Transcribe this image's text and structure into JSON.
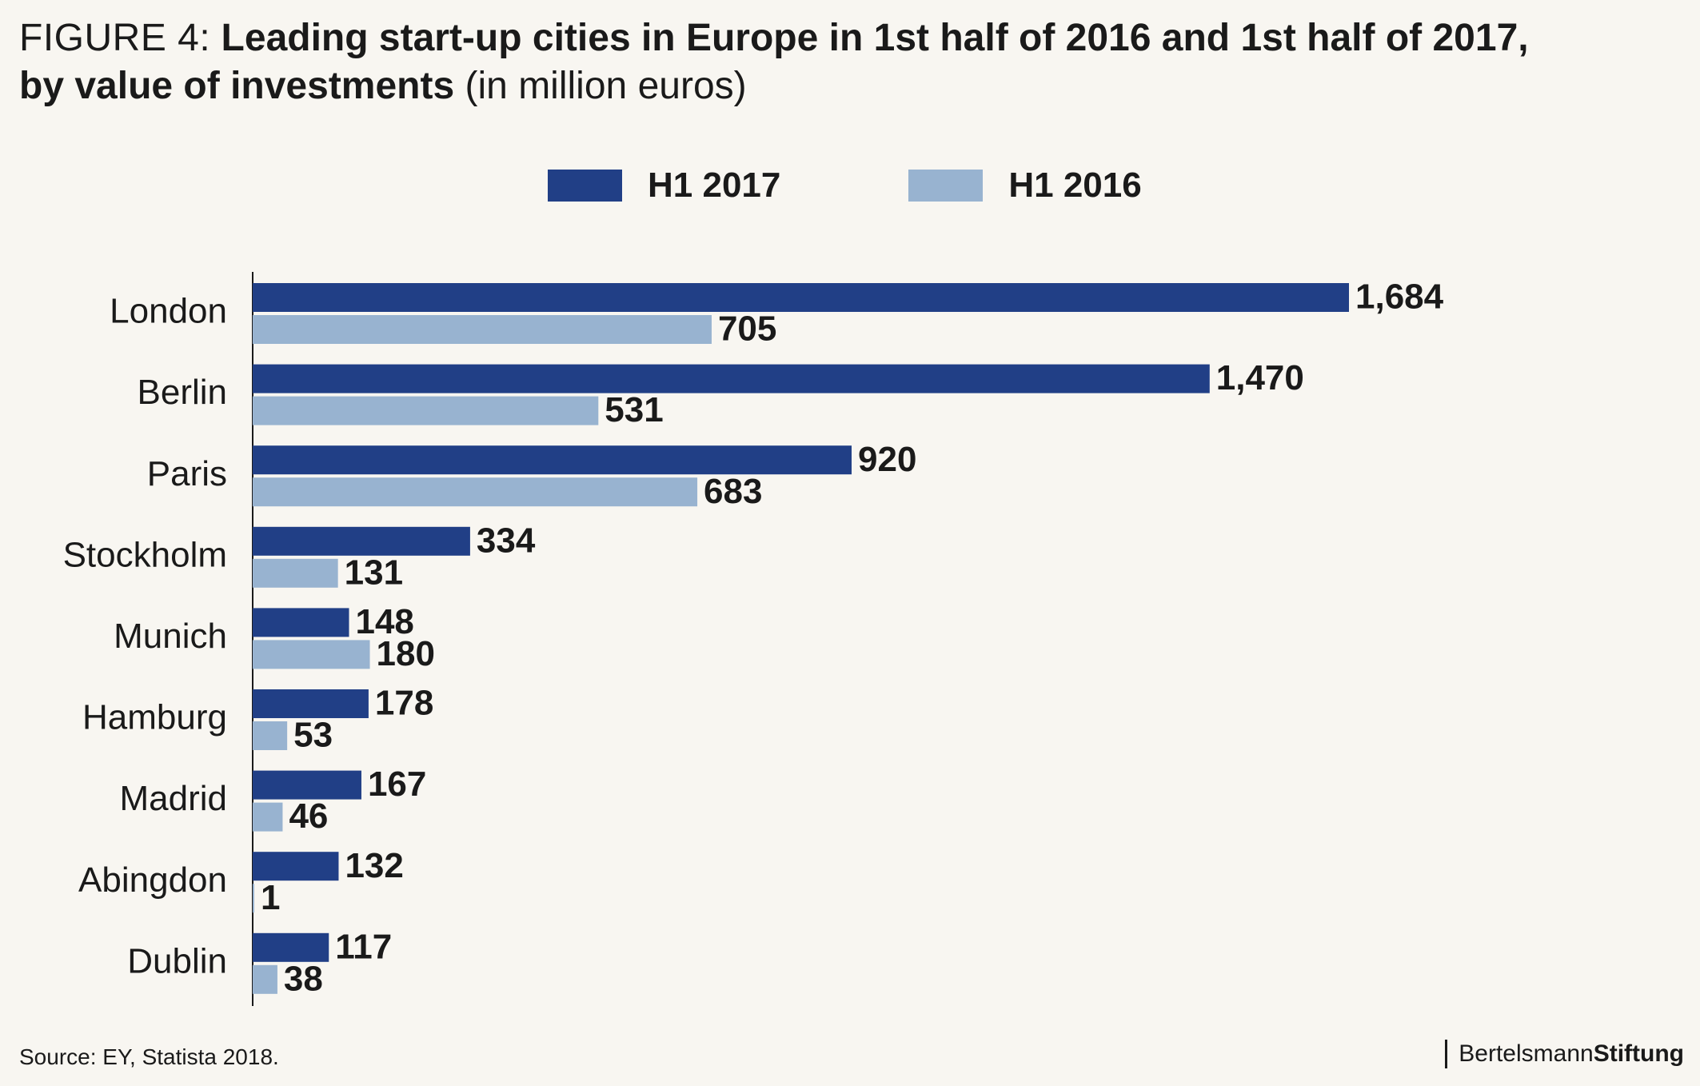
{
  "header": {
    "figure_label": "FIGURE 4:",
    "title_bold_1": "Leading start-up cities in Europe in 1st half of 2016 and 1st half of 2017,",
    "title_bold_2": "by value of investments",
    "title_unit": "(in million euros)"
  },
  "footer": {
    "source": "Source: EY, Statista 2018.",
    "brand_part1": "Bertelsmann",
    "brand_part2": "Stiftung"
  },
  "colors": {
    "h1_2017": "#213f86",
    "h1_2016": "#98b3d0",
    "axis": "#1a1a1a",
    "background": "#f8f6f1"
  },
  "chart_data": {
    "type": "bar",
    "orientation": "horizontal",
    "title": "Leading start-up cities in Europe in 1st half of 2016 and 1st half of 2017, by value of investments (in million euros)",
    "categories": [
      "London",
      "Berlin",
      "Paris",
      "Stockholm",
      "Munich",
      "Hamburg",
      "Madrid",
      "Abingdon",
      "Dublin"
    ],
    "series": [
      {
        "name": "H1 2017",
        "values": [
          1684,
          1470,
          920,
          334,
          148,
          178,
          167,
          132,
          117
        ],
        "labels": [
          "1,684",
          "1,470",
          "920",
          "334",
          "148",
          "178",
          "167",
          "132",
          "117"
        ]
      },
      {
        "name": "H1 2016",
        "values": [
          705,
          531,
          683,
          131,
          180,
          53,
          46,
          1,
          38
        ],
        "labels": [
          "705",
          "531",
          "683",
          "131",
          "180",
          "53",
          "46",
          "1",
          "38"
        ]
      }
    ],
    "xlim": [
      0,
      1684
    ],
    "grid": false,
    "legend": "top-center",
    "xlabel": "",
    "ylabel": ""
  }
}
